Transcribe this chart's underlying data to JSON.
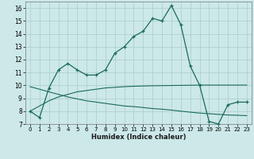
{
  "xlabel": "Humidex (Indice chaleur)",
  "x_values": [
    0,
    1,
    2,
    3,
    4,
    5,
    6,
    7,
    8,
    9,
    10,
    11,
    12,
    13,
    14,
    15,
    16,
    17,
    18,
    19,
    20,
    21,
    22,
    23
  ],
  "main_y": [
    8.0,
    7.5,
    9.8,
    11.2,
    11.7,
    11.2,
    10.8,
    10.8,
    11.2,
    12.5,
    13.0,
    13.8,
    14.2,
    15.2,
    15.0,
    16.2,
    14.7,
    11.5,
    10.0,
    7.2,
    7.0,
    8.5,
    8.7,
    8.7
  ],
  "line_up_y": [
    8.0,
    8.4,
    8.8,
    9.1,
    9.3,
    9.5,
    9.6,
    9.7,
    9.8,
    9.85,
    9.9,
    9.93,
    9.95,
    9.97,
    9.98,
    9.99,
    10.0,
    10.01,
    10.02,
    10.02,
    10.02,
    10.02,
    10.02,
    10.02
  ],
  "line_down_y": [
    9.9,
    9.7,
    9.5,
    9.3,
    9.1,
    8.95,
    8.8,
    8.7,
    8.6,
    8.5,
    8.4,
    8.35,
    8.28,
    8.2,
    8.15,
    8.08,
    8.0,
    7.92,
    7.85,
    7.8,
    7.75,
    7.7,
    7.68,
    7.65
  ],
  "color": "#1a6b5a",
  "bg_color": "#cce8e8",
  "grid_color": "#aacccc",
  "ylim": [
    7,
    16.5
  ],
  "xlim": [
    -0.5,
    23.5
  ],
  "yticks": [
    7,
    8,
    9,
    10,
    11,
    12,
    13,
    14,
    15,
    16
  ],
  "xticks": [
    0,
    1,
    2,
    3,
    4,
    5,
    6,
    7,
    8,
    9,
    10,
    11,
    12,
    13,
    14,
    15,
    16,
    17,
    18,
    19,
    20,
    21,
    22,
    23
  ]
}
